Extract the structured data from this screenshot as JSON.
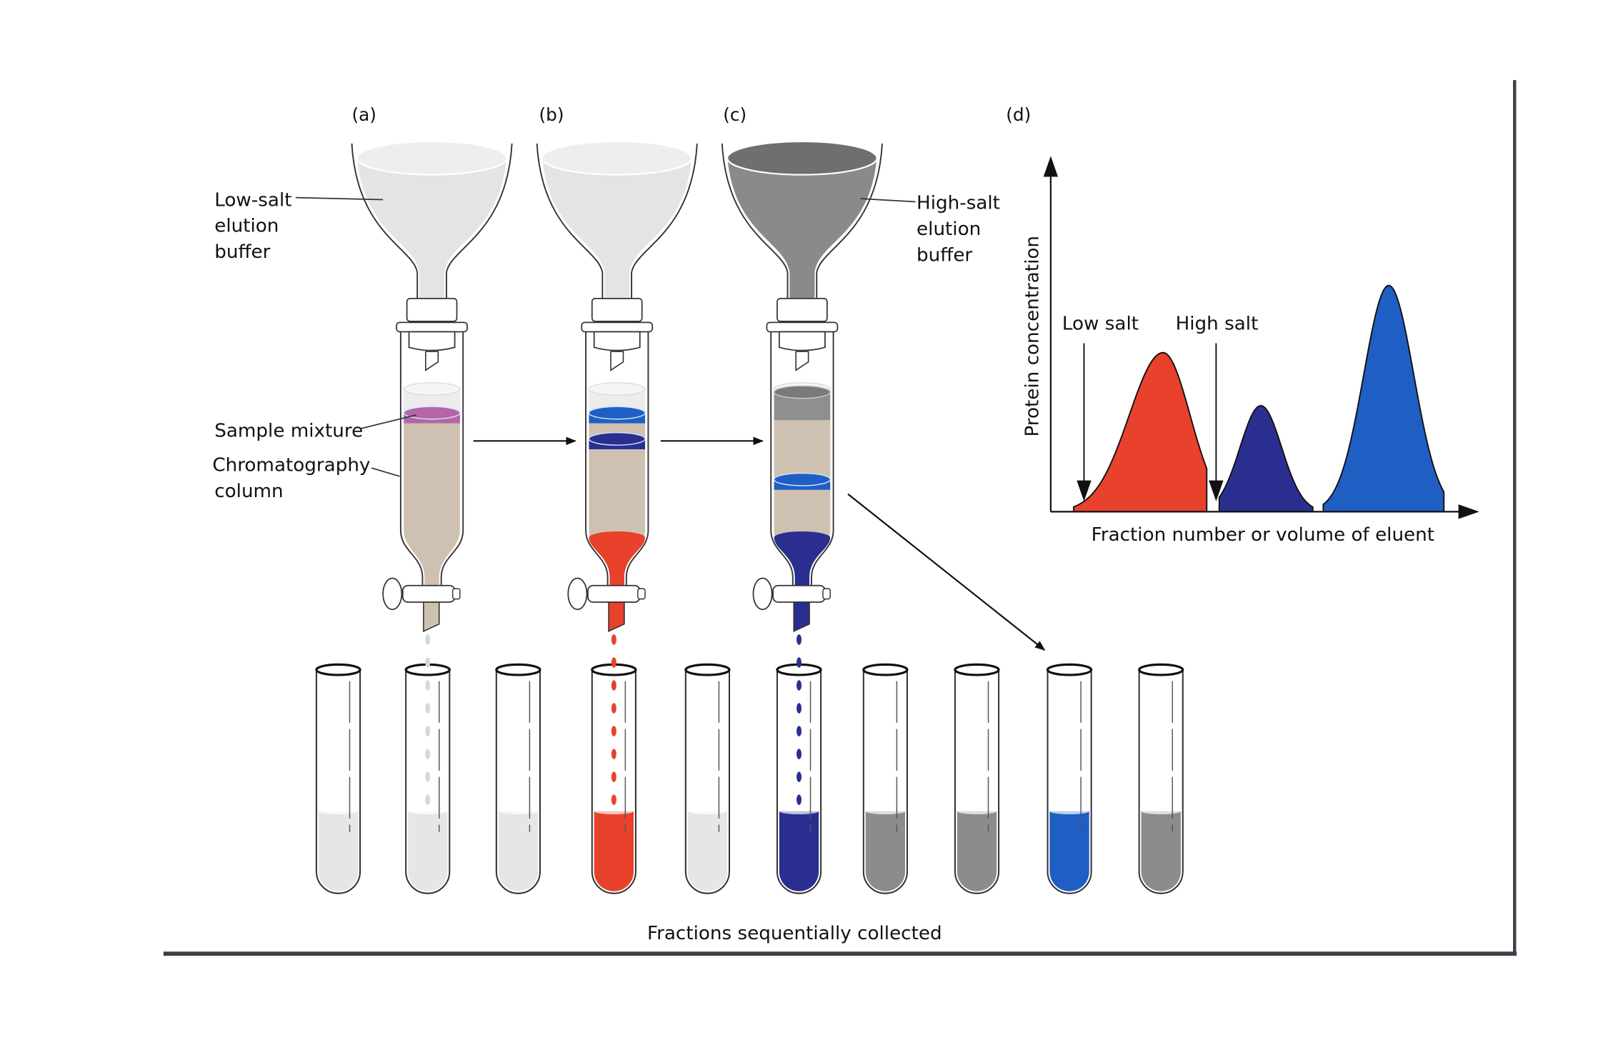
{
  "panels": {
    "a": "(a)",
    "b": "(b)",
    "c": "(c)",
    "d": "(d)"
  },
  "labels": {
    "low_salt_buffer": [
      "Low-salt",
      "elution",
      "buffer"
    ],
    "high_salt_buffer": [
      "High-salt",
      "elution",
      "buffer"
    ],
    "sample_mixture": "Sample mixture",
    "column": [
      "Chromatography",
      "column"
    ],
    "fractions": "Fractions sequentially collected"
  },
  "colors": {
    "low_salt_buffer": "#e4e4e4",
    "high_salt_buffer": "#8a8a8a",
    "column_packing": "#cfc1b2",
    "sample": "#b565a8",
    "red_protein": "#e8412c",
    "navy_protein": "#2a2f8f",
    "blue_protein": "#1f5fc4",
    "frame": "#3a3f45"
  },
  "columns": [
    {
      "panel": "a",
      "buffer": "low_salt_buffer",
      "bands": [
        "sample"
      ],
      "eluting": null
    },
    {
      "panel": "b",
      "buffer": "low_salt_buffer",
      "bands": [
        "blue_protein",
        "navy_protein"
      ],
      "eluting": "red_protein"
    },
    {
      "panel": "c",
      "buffer": "high_salt_buffer",
      "bands": [
        "high_salt_buffer",
        "blue_protein"
      ],
      "eluting": "navy_protein"
    }
  ],
  "tubes": [
    "low_salt_buffer",
    "low_salt_buffer",
    "low_salt_buffer",
    "red_protein",
    "low_salt_buffer",
    "navy_protein",
    "high_salt_buffer",
    "high_salt_buffer",
    "blue_protein",
    "high_salt_buffer"
  ],
  "graph": {
    "ylabel": "Protein concentration",
    "xlabel": "Fraction number or volume of eluent",
    "markers": [
      "Low salt",
      "High salt"
    ],
    "peaks": [
      {
        "color": "red_protein",
        "relative_height": 0.45
      },
      {
        "color": "navy_protein",
        "relative_height": 0.3
      },
      {
        "color": "blue_protein",
        "relative_height": 0.64
      }
    ]
  }
}
